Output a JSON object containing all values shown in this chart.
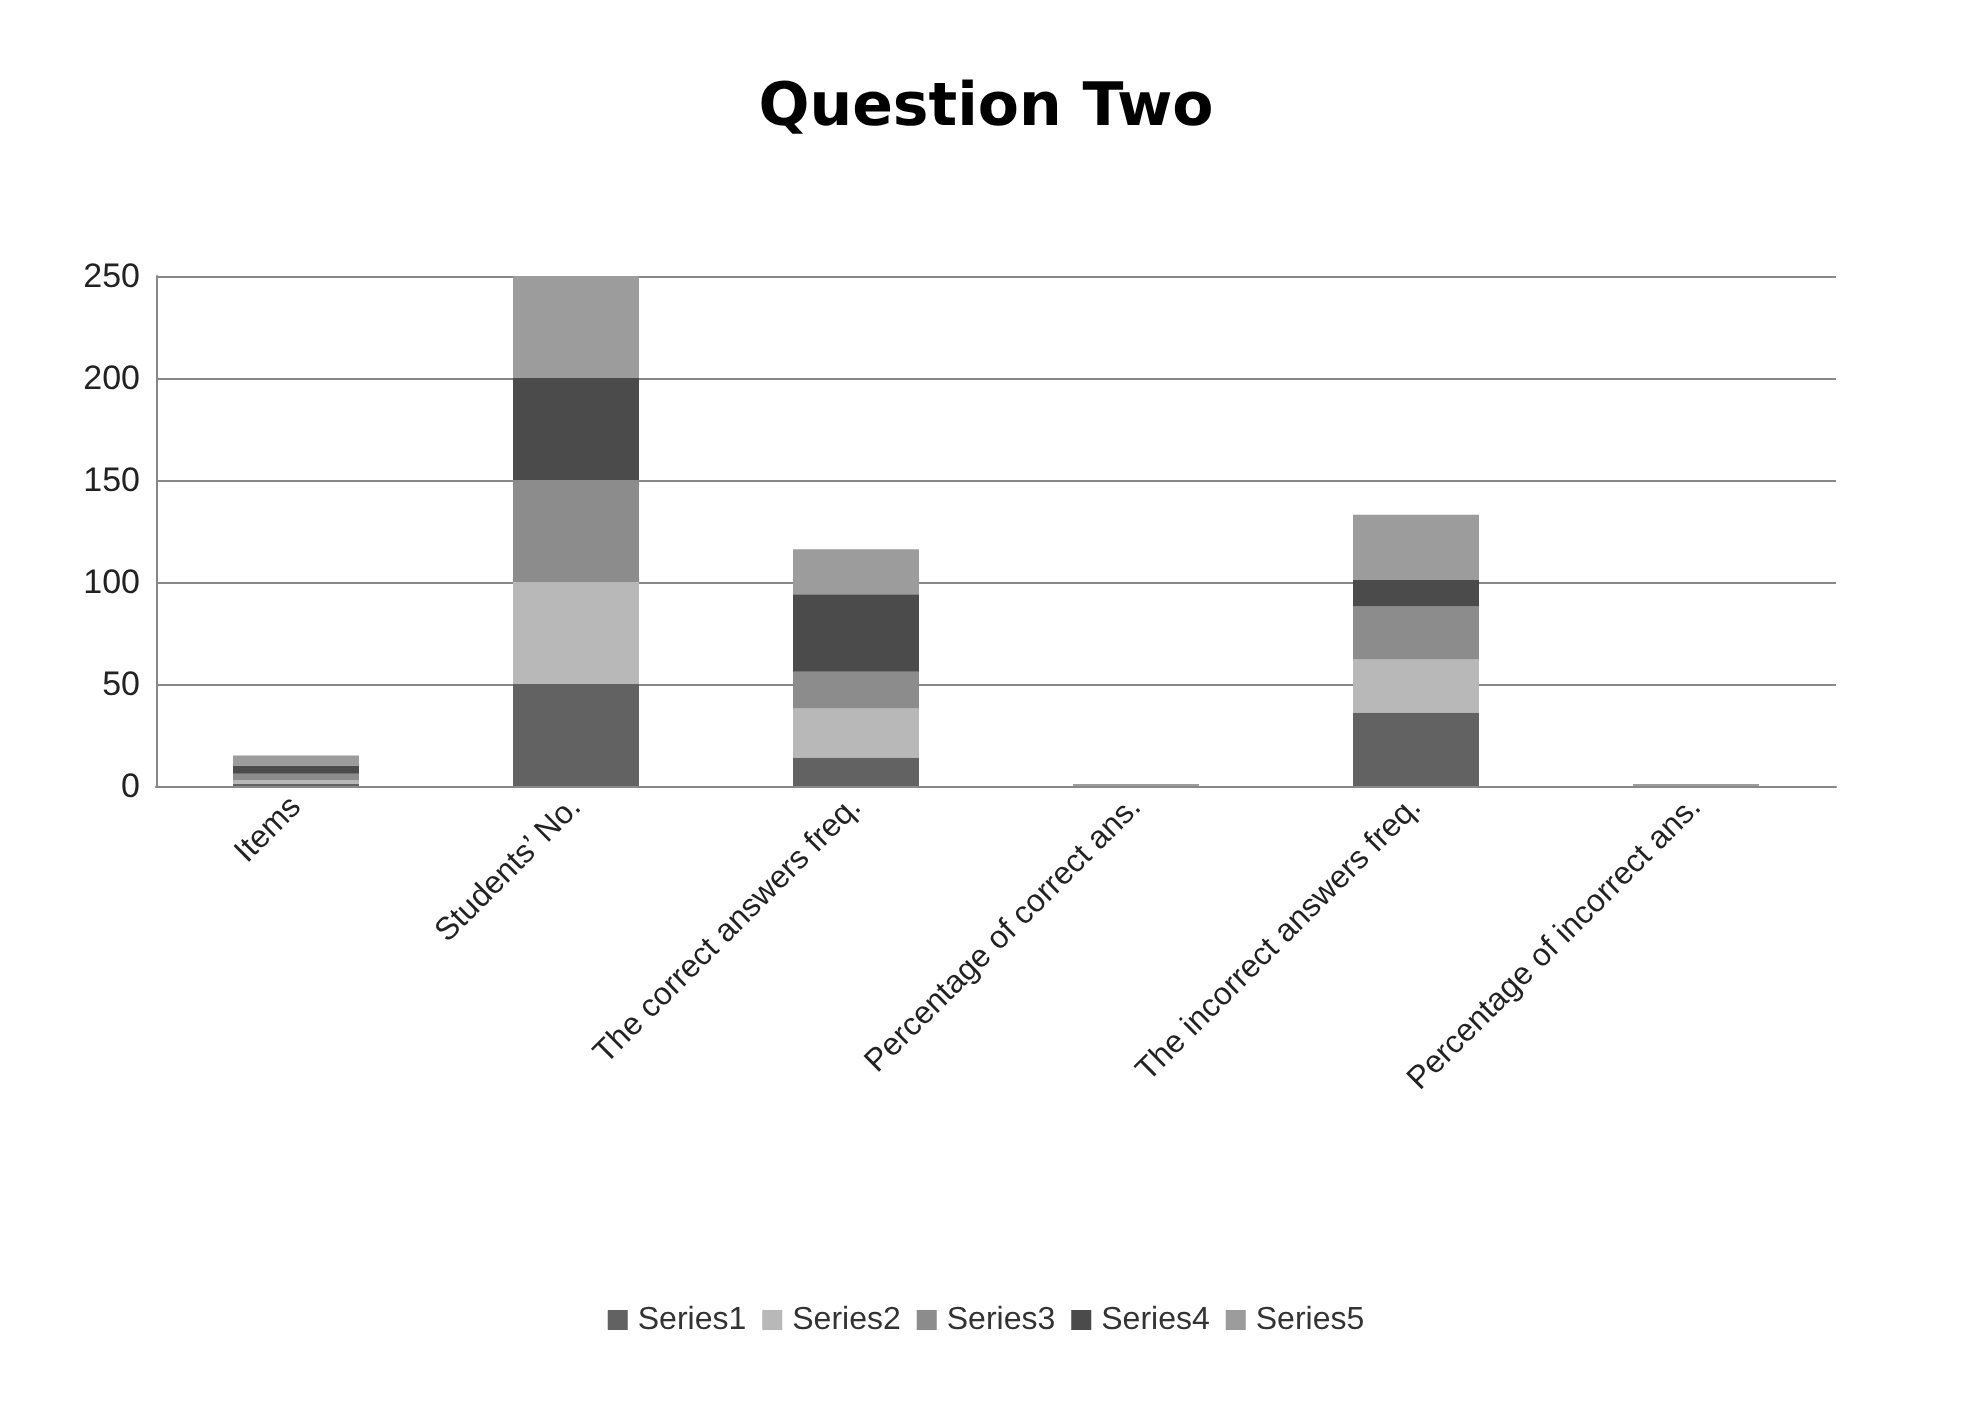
{
  "chart_data": {
    "type": "bar",
    "title": "Question Two",
    "stacked": true,
    "grid": "y",
    "legend": "bottom",
    "categories": [
      "Items",
      "Students’ No.",
      "The correct answers freq.",
      "Percentage of correct ans.",
      "The incorrect answers freq.",
      "Percentage of incorrect ans."
    ],
    "ylim": [
      0,
      250
    ],
    "yticks": [
      0,
      50,
      100,
      150,
      200,
      250
    ],
    "series": [
      {
        "name": "Series1",
        "color": "#626262",
        "values": [
          1,
          50,
          14,
          null,
          36,
          null
        ]
      },
      {
        "name": "Series2",
        "color": "#b8b8b8",
        "values": [
          2,
          50,
          24,
          null,
          26,
          null
        ]
      },
      {
        "name": "Series3",
        "color": "#8c8c8c",
        "values": [
          3,
          50,
          18,
          null,
          26,
          null
        ]
      },
      {
        "name": "Series4",
        "color": "#4b4b4b",
        "values": [
          4,
          50,
          38,
          null,
          13,
          null
        ]
      },
      {
        "name": "Series5",
        "color": "#9c9c9c",
        "values": [
          5,
          50,
          22,
          1,
          32,
          1
        ]
      }
    ]
  }
}
